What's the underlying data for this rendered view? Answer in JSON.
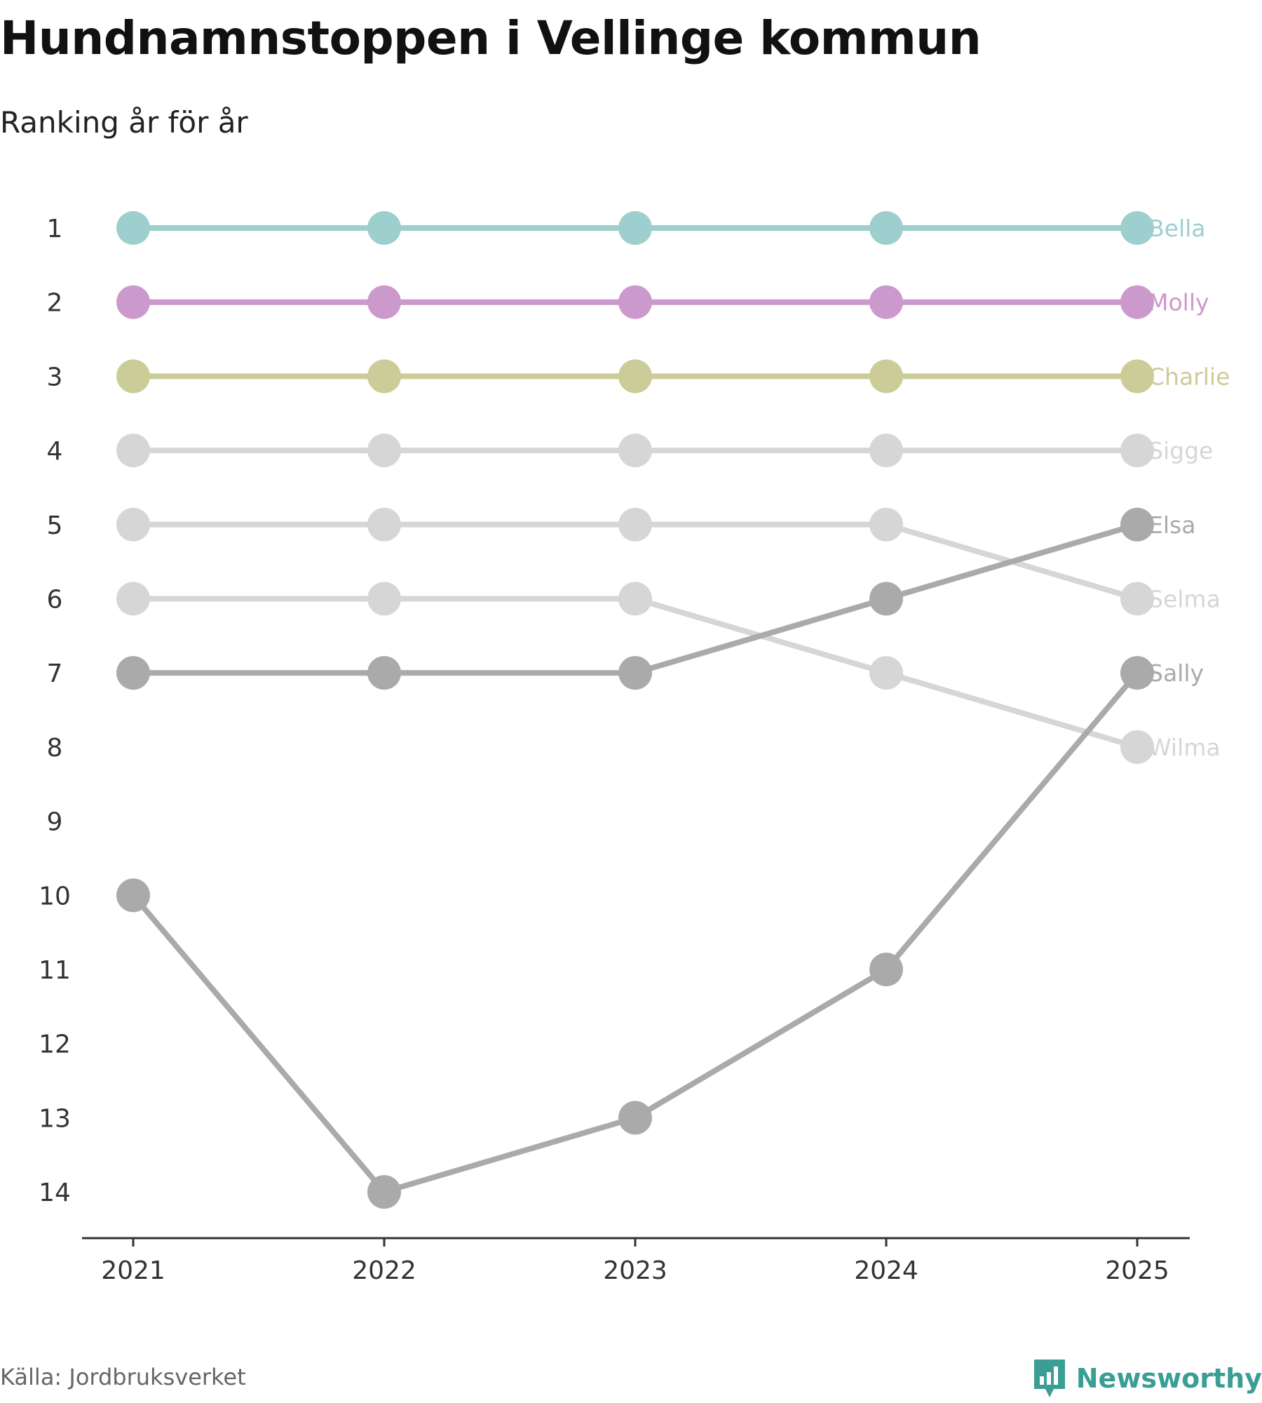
{
  "title": "Hundnamnstoppen i Vellinge kommun",
  "subtitle": "Ranking år för år",
  "source": "Källa: Jordbruksverket",
  "brand": {
    "name": "Newsworthy",
    "icon": "newsworthy-chart-bubble-icon",
    "color": "#3a9e94"
  },
  "chart_data": {
    "type": "line",
    "title": "Hundnamnstoppen i Vellinge kommun",
    "subtitle": "Ranking år för år",
    "xlabel": "",
    "ylabel": "",
    "x": [
      "2021",
      "2022",
      "2023",
      "2024",
      "2025"
    ],
    "yticks": [
      1,
      2,
      3,
      4,
      5,
      6,
      7,
      8,
      9,
      10,
      11,
      12,
      13,
      14
    ],
    "ylim": [
      1,
      14
    ],
    "y_inverted": true,
    "grid": false,
    "legend": "labels at line ends (right)",
    "series": [
      {
        "name": "Bella",
        "values": [
          1,
          1,
          1,
          1,
          1
        ],
        "color": "#9ccfcd"
      },
      {
        "name": "Molly",
        "values": [
          2,
          2,
          2,
          2,
          2
        ],
        "color": "#cc99cc"
      },
      {
        "name": "Charlie",
        "values": [
          3,
          3,
          3,
          3,
          3
        ],
        "color": "#cccc99"
      },
      {
        "name": "Sigge",
        "values": [
          4,
          4,
          4,
          4,
          4
        ],
        "color": "#d6d6d6"
      },
      {
        "name": "Selma",
        "values": [
          5,
          5,
          5,
          5,
          6
        ],
        "color": "#d6d6d6"
      },
      {
        "name": "Wilma",
        "values": [
          6,
          6,
          6,
          7,
          8
        ],
        "color": "#d6d6d6"
      },
      {
        "name": "Elsa",
        "values": [
          7,
          7,
          7,
          6,
          5
        ],
        "color": "#aaaaaa"
      },
      {
        "name": "Sally",
        "values": [
          10,
          14,
          13,
          11,
          7
        ],
        "color": "#aaaaaa"
      }
    ]
  }
}
